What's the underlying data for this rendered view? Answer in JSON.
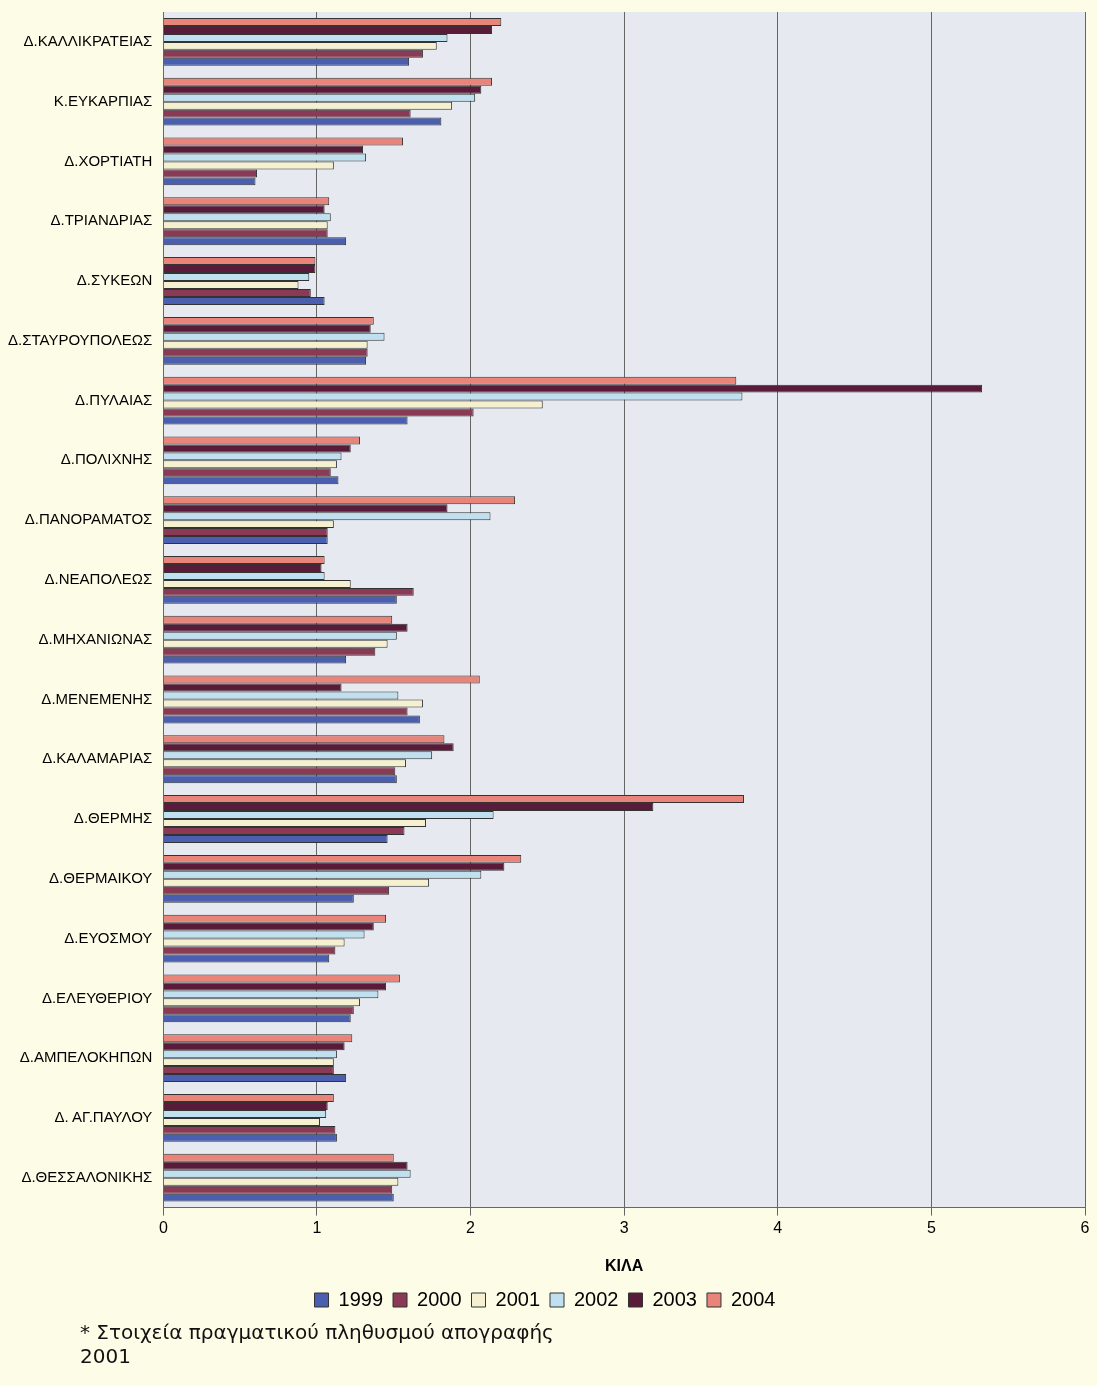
{
  "chart_data": {
    "type": "bar",
    "orientation": "horizontal",
    "xlabel": "ΚΙΛΑ",
    "categories": [
      "Δ.ΚΑΛΛΙΚΡΑΤΕΙΑΣ",
      "Κ.ΕΥΚΑΡΠΙΑΣ",
      "Δ.ΧΟΡΤΙΑΤΗ",
      "Δ.ΤΡΙΑΝΔΡΙΑΣ",
      "Δ.ΣΥΚΕΩΝ",
      "Δ.ΣΤΑΥΡΟΥΠΟΛΕΩΣ",
      "Δ.ΠΥΛΑΙΑΣ",
      "Δ.ΠΟΛΙΧΝΗΣ",
      "Δ.ΠΑΝΟΡΑΜΑΤΟΣ",
      "Δ.ΝΕΑΠΟΛΕΩΣ",
      "Δ.ΜΗΧΑΝΙΩΝΑΣ",
      "Δ.ΜΕΝΕΜΕΝΗΣ",
      "Δ.ΚΑΛΑΜΑΡΙΑΣ",
      "Δ.ΘΕΡΜΗΣ",
      "Δ.ΘΕΡΜΑΙΚΟΥ",
      "Δ.ΕΥΟΣΜΟΥ",
      "Δ.ΕΛΕΥΘΕΡΙΟΥ",
      "Δ.ΑΜΠΕΛΟΚΗΠΩΝ",
      "Δ. ΑΓ.ΠΑΥΛΟΥ",
      "Δ.ΘΕΣΣΑΛΟΝΙΚΗΣ"
    ],
    "series": [
      {
        "name": "1999",
        "color": "#4a5fb0",
        "values": [
          1.6,
          1.81,
          0.6,
          1.19,
          1.05,
          1.32,
          1.59,
          1.14,
          1.07,
          1.52,
          1.19,
          1.67,
          1.52,
          1.46,
          1.24,
          1.08,
          1.22,
          1.19,
          1.13,
          1.5
        ]
      },
      {
        "name": "2000",
        "color": "#8b3a55",
        "values": [
          1.69,
          1.61,
          0.61,
          1.07,
          0.96,
          1.33,
          2.02,
          1.09,
          1.07,
          1.63,
          1.38,
          1.59,
          1.51,
          1.57,
          1.47,
          1.12,
          1.24,
          1.11,
          1.12,
          1.49
        ]
      },
      {
        "name": "2001",
        "color": "#f4f0d0",
        "values": [
          1.78,
          1.88,
          1.11,
          1.07,
          0.88,
          1.33,
          2.47,
          1.13,
          1.11,
          1.22,
          1.46,
          1.69,
          1.58,
          1.71,
          1.73,
          1.18,
          1.28,
          1.11,
          1.02,
          1.53
        ]
      },
      {
        "name": "2002",
        "color": "#c0e0f0",
        "values": [
          1.85,
          2.03,
          1.32,
          1.09,
          0.95,
          1.44,
          3.77,
          1.16,
          2.13,
          1.05,
          1.52,
          1.53,
          1.75,
          2.15,
          2.07,
          1.31,
          1.4,
          1.13,
          1.06,
          1.61
        ]
      },
      {
        "name": "2003",
        "color": "#5a1a3a",
        "values": [
          2.14,
          2.07,
          1.3,
          1.05,
          0.99,
          1.35,
          5.33,
          1.22,
          1.85,
          1.03,
          1.59,
          1.16,
          1.89,
          3.19,
          2.22,
          1.37,
          1.45,
          1.18,
          1.07,
          1.59
        ]
      },
      {
        "name": "2004",
        "color": "#e8847a",
        "values": [
          2.2,
          2.14,
          1.56,
          1.08,
          0.99,
          1.37,
          3.73,
          1.28,
          2.29,
          1.05,
          1.49,
          2.06,
          1.83,
          3.78,
          2.33,
          1.45,
          1.54,
          1.23,
          1.11,
          1.5
        ]
      }
    ],
    "xlim": [
      0,
      6
    ],
    "xticks": [
      0,
      1,
      2,
      3,
      4,
      5,
      6
    ],
    "grid": "x",
    "legend": "bottom",
    "annotations": [
      "* Στοιχεία πραγματικού πληθυσμού απογραφής 2001"
    ]
  }
}
